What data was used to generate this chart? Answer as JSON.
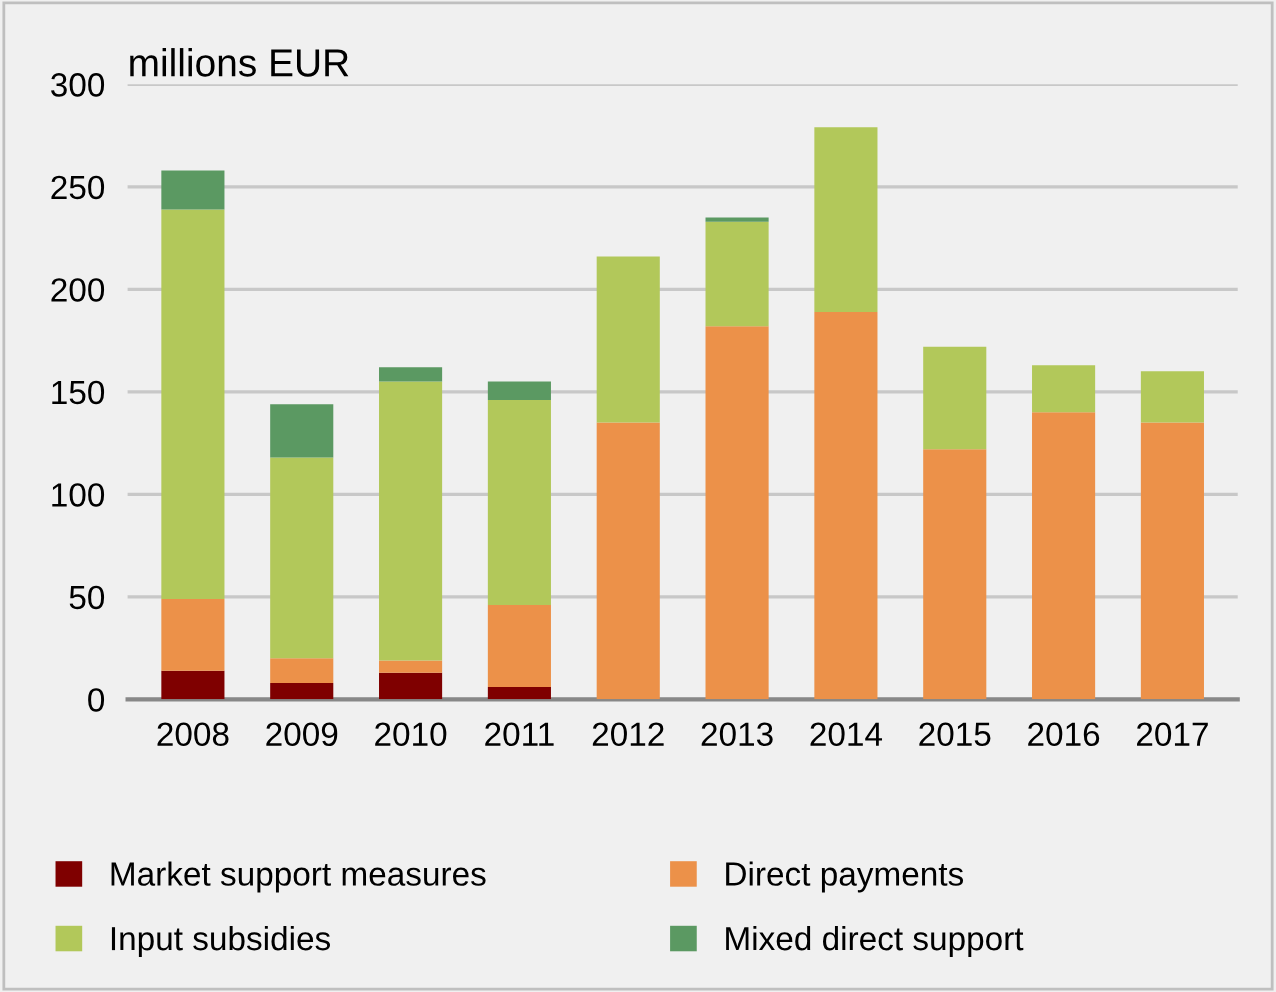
{
  "chart_data": {
    "type": "bar",
    "stacked": true,
    "ylabel": "millions EUR",
    "categories": [
      "2008",
      "2009",
      "2010",
      "2011",
      "2012",
      "2013",
      "2014",
      "2015",
      "2016",
      "2017"
    ],
    "series": [
      {
        "name": "Market support measures",
        "color": "#7f0000",
        "values": [
          14,
          8,
          13,
          6,
          0,
          0,
          0,
          0,
          0,
          0
        ]
      },
      {
        "name": "Direct payments",
        "color": "#ec9149",
        "values": [
          35,
          12,
          6,
          40,
          135,
          182,
          189,
          122,
          140,
          135
        ]
      },
      {
        "name": "Input subsidies",
        "color": "#b2c85a",
        "values": [
          190,
          98,
          136,
          100,
          81,
          51,
          90,
          50,
          23,
          25
        ]
      },
      {
        "name": "Mixed direct support",
        "color": "#5b9962",
        "values": [
          19,
          26,
          7,
          9,
          0,
          2,
          0,
          0,
          0,
          0
        ]
      }
    ],
    "ylim": [
      0,
      300
    ],
    "yticks": [
      0,
      50,
      100,
      150,
      200,
      250,
      300
    ],
    "grid": "y",
    "legend": "bottom"
  }
}
